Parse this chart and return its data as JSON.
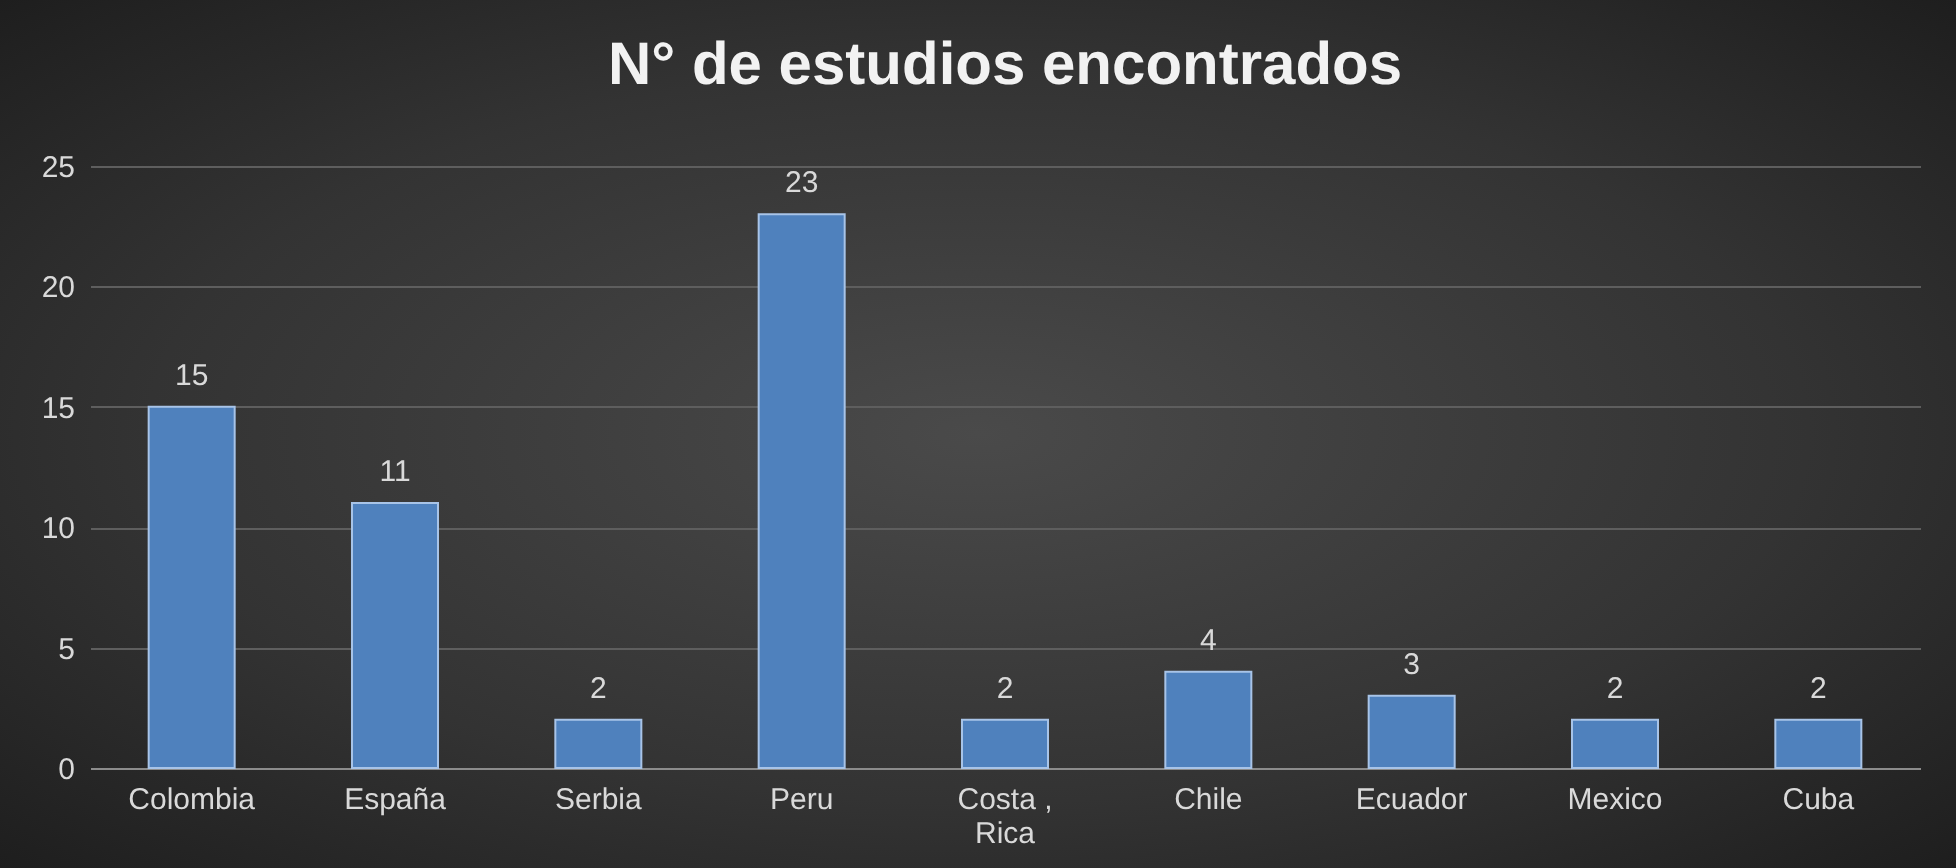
{
  "chart_data": {
    "type": "bar",
    "title": "N° de estudios encontrados",
    "categories": [
      "Colombia",
      "España",
      "Serbia",
      "Peru",
      "Costa , Rica",
      "Chile",
      "Ecuador",
      "Mexico",
      "Cuba"
    ],
    "values": [
      15,
      11,
      2,
      23,
      2,
      4,
      3,
      2,
      2
    ],
    "color": "#4f81bd",
    "ylim": [
      0,
      25
    ],
    "yticks": [
      0,
      5,
      10,
      15,
      20,
      25
    ],
    "grid": "y",
    "data_labels": true
  }
}
